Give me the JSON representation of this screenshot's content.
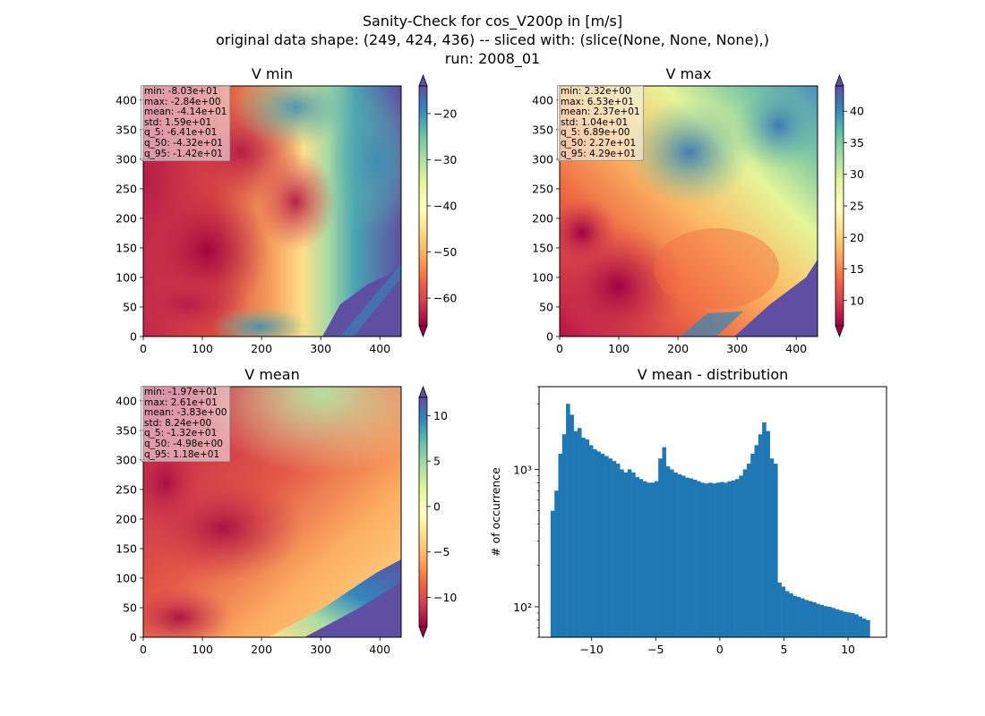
{
  "figure": {
    "title_line1": "Sanity-Check for cos_V200p in [m/s]",
    "title_line2": "original data shape: (249, 424, 436) -- sliced with: (slice(None, None, None),)",
    "title_line3": "run: 2008_01"
  },
  "chart_data": [
    {
      "type": "heatmap",
      "title": "V min",
      "colormap": "Spectral",
      "xlim": [
        0,
        436
      ],
      "ylim": [
        0,
        424
      ],
      "xticks": [
        0,
        100,
        200,
        300,
        400
      ],
      "yticks": [
        0,
        50,
        100,
        150,
        200,
        250,
        300,
        350,
        400
      ],
      "colorbar": {
        "min": -66,
        "max": -14,
        "ticks": [
          -60,
          -50,
          -40,
          -30,
          -20
        ],
        "extend": "both"
      },
      "stats": [
        "min: -8.03e+01",
        "max: -2.84e+00",
        "mean: -4.14e+01",
        "std: 1.59e+01",
        "q_5: -6.41e+01",
        "q_50: -4.32e+01",
        "q_95: -1.42e+01"
      ]
    },
    {
      "type": "heatmap",
      "title": "V max",
      "colormap": "Spectral",
      "xlim": [
        0,
        436
      ],
      "ylim": [
        0,
        424
      ],
      "xticks": [
        0,
        100,
        200,
        300,
        400
      ],
      "yticks": [
        0,
        50,
        100,
        150,
        200,
        250,
        300,
        350,
        400
      ],
      "colorbar": {
        "min": 6,
        "max": 44,
        "ticks": [
          10,
          15,
          20,
          25,
          30,
          35,
          40
        ],
        "extend": "both"
      },
      "stats": [
        "min: 2.32e+00",
        "max: 6.53e+01",
        "mean: 2.37e+01",
        "std: 1.04e+01",
        "q_5: 6.89e+00",
        "q_50: 2.27e+01",
        "q_95: 4.29e+01"
      ]
    },
    {
      "type": "heatmap",
      "title": "V mean",
      "colormap": "Spectral",
      "xlim": [
        0,
        436
      ],
      "ylim": [
        0,
        424
      ],
      "xticks": [
        0,
        100,
        200,
        300,
        400
      ],
      "yticks": [
        0,
        50,
        100,
        150,
        200,
        250,
        300,
        350,
        400
      ],
      "colorbar": {
        "min": -13.2,
        "max": 12,
        "ticks": [
          -10,
          -5,
          0,
          5,
          10
        ],
        "extend": "both"
      },
      "stats": [
        "min: -1.97e+01",
        "max: 2.61e+01",
        "mean: -3.83e+00",
        "std: 8.24e+00",
        "q_5: -1.32e+01",
        "q_50: -4.98e+00",
        "q_95: 1.18e+01"
      ]
    },
    {
      "type": "bar",
      "title": "V mean - distribution",
      "xlabel": "",
      "ylabel": "# of occurrence",
      "yscale": "log",
      "xlim": [
        -14.1,
        13.0
      ],
      "ylim": [
        60,
        4000
      ],
      "xticks": [
        -10,
        -5,
        0,
        5,
        10
      ],
      "yticks": [
        100,
        1000
      ],
      "ytick_labels": [
        "10²",
        "10³"
      ],
      "color": "#1f77b4",
      "histogram": {
        "x": [
          -13.2,
          -12.9,
          -12.6,
          -12.3,
          -12.0,
          -11.7,
          -11.4,
          -11.1,
          -10.8,
          -10.5,
          -10.2,
          -9.9,
          -9.6,
          -9.3,
          -9.0,
          -8.7,
          -8.4,
          -8.1,
          -7.8,
          -7.5,
          -7.2,
          -6.9,
          -6.6,
          -6.3,
          -6.0,
          -5.7,
          -5.4,
          -5.1,
          -4.8,
          -4.5,
          -4.2,
          -3.9,
          -3.6,
          -3.3,
          -3.0,
          -2.7,
          -2.4,
          -2.1,
          -1.8,
          -1.5,
          -1.2,
          -0.9,
          -0.6,
          -0.3,
          0.0,
          0.3,
          0.6,
          0.9,
          1.2,
          1.5,
          1.8,
          2.1,
          2.4,
          2.7,
          3.0,
          3.3,
          3.6,
          3.9,
          4.2,
          4.5,
          4.8,
          5.1,
          5.4,
          5.7,
          6.0,
          6.3,
          6.6,
          6.9,
          7.2,
          7.5,
          7.8,
          8.1,
          8.4,
          8.7,
          9.0,
          9.3,
          9.6,
          9.9,
          10.2,
          10.5,
          10.8,
          11.1,
          11.4
        ],
        "counts": [
          500,
          700,
          1300,
          1800,
          3000,
          2500,
          1900,
          2000,
          1700,
          1650,
          1500,
          1400,
          1350,
          1300,
          1250,
          1200,
          1150,
          1100,
          1000,
          950,
          1000,
          950,
          880,
          850,
          820,
          800,
          800,
          820,
          1200,
          1450,
          1050,
          1000,
          950,
          920,
          900,
          870,
          860,
          840,
          820,
          800,
          790,
          800,
          790,
          800,
          810,
          800,
          820,
          830,
          850,
          900,
          1000,
          1100,
          1300,
          1500,
          1800,
          2200,
          1900,
          1200,
          1100,
          150,
          140,
          130,
          125,
          120,
          118,
          115,
          112,
          110,
          108,
          105,
          103,
          101,
          100,
          98,
          96,
          94,
          92,
          91,
          90,
          88,
          85,
          82,
          80
        ]
      }
    }
  ]
}
